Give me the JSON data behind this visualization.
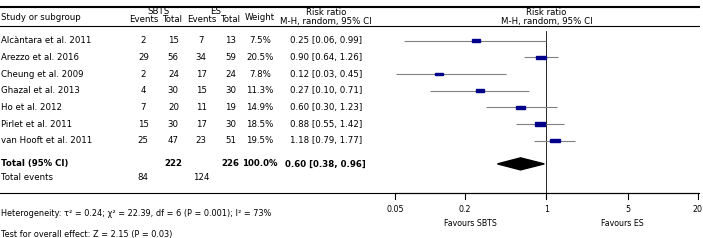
{
  "studies": [
    {
      "name": "Alcàntara et al. 2011",
      "sbts_events": 2,
      "sbts_total": 15,
      "es_events": 7,
      "es_total": 13,
      "weight": "7.5%",
      "rr": 0.25,
      "ci_low": 0.06,
      "ci_high": 0.99
    },
    {
      "name": "Arezzo et al. 2016",
      "sbts_events": 29,
      "sbts_total": 56,
      "es_events": 34,
      "es_total": 59,
      "weight": "20.5%",
      "rr": 0.9,
      "ci_low": 0.64,
      "ci_high": 1.26
    },
    {
      "name": "Cheung et al. 2009",
      "sbts_events": 2,
      "sbts_total": 24,
      "es_events": 17,
      "es_total": 24,
      "weight": "7.8%",
      "rr": 0.12,
      "ci_low": 0.03,
      "ci_high": 0.45
    },
    {
      "name": "Ghazal et al. 2013",
      "sbts_events": 4,
      "sbts_total": 30,
      "es_events": 15,
      "es_total": 30,
      "weight": "11.3%",
      "rr": 0.27,
      "ci_low": 0.1,
      "ci_high": 0.71
    },
    {
      "name": "Ho et al. 2012",
      "sbts_events": 7,
      "sbts_total": 20,
      "es_events": 11,
      "es_total": 19,
      "weight": "14.9%",
      "rr": 0.6,
      "ci_low": 0.3,
      "ci_high": 1.23
    },
    {
      "name": "Pirlet et al. 2011",
      "sbts_events": 15,
      "sbts_total": 30,
      "es_events": 17,
      "es_total": 30,
      "weight": "18.5%",
      "rr": 0.88,
      "ci_low": 0.55,
      "ci_high": 1.42
    },
    {
      "name": "van Hooft et al. 2011",
      "sbts_events": 25,
      "sbts_total": 47,
      "es_events": 23,
      "es_total": 51,
      "weight": "19.5%",
      "rr": 1.18,
      "ci_low": 0.79,
      "ci_high": 1.77
    }
  ],
  "total": {
    "sbts_total": 222,
    "es_total": 226,
    "weight": "100.0%",
    "rr": 0.6,
    "ci_low": 0.38,
    "ci_high": 0.96,
    "sbts_events": 84,
    "es_events": 124
  },
  "heterogeneity": "Heterogeneity: τ² = 0.24; χ² = 22.39, df = 6 (P = 0.001); I² = 73%",
  "overall_test": "Test for overall effect: Z = 2.15 (P = 0.03)",
  "col_headers": {
    "sbts": "SBTS",
    "es": "ES",
    "weight": "Weight",
    "rr_text": "Risk ratio",
    "rr_sub": "M-H, random, 95% CI",
    "rr_plot": "Risk ratio",
    "rr_plot_sub": "M-H, random, 95% CI",
    "events": "Events",
    "total": "Total"
  },
  "axis_ticks": [
    0.05,
    0.2,
    1,
    5,
    20
  ],
  "axis_labels": [
    "0.05",
    "0.2",
    "1",
    "5",
    "20"
  ],
  "favours_left": "Favours SBTS",
  "favours_right": "Favours ES",
  "bg_color": "#ffffff",
  "text_color": "#000000",
  "box_color": "#00008B",
  "line_color": "#808080",
  "diamond_color": "#000000"
}
